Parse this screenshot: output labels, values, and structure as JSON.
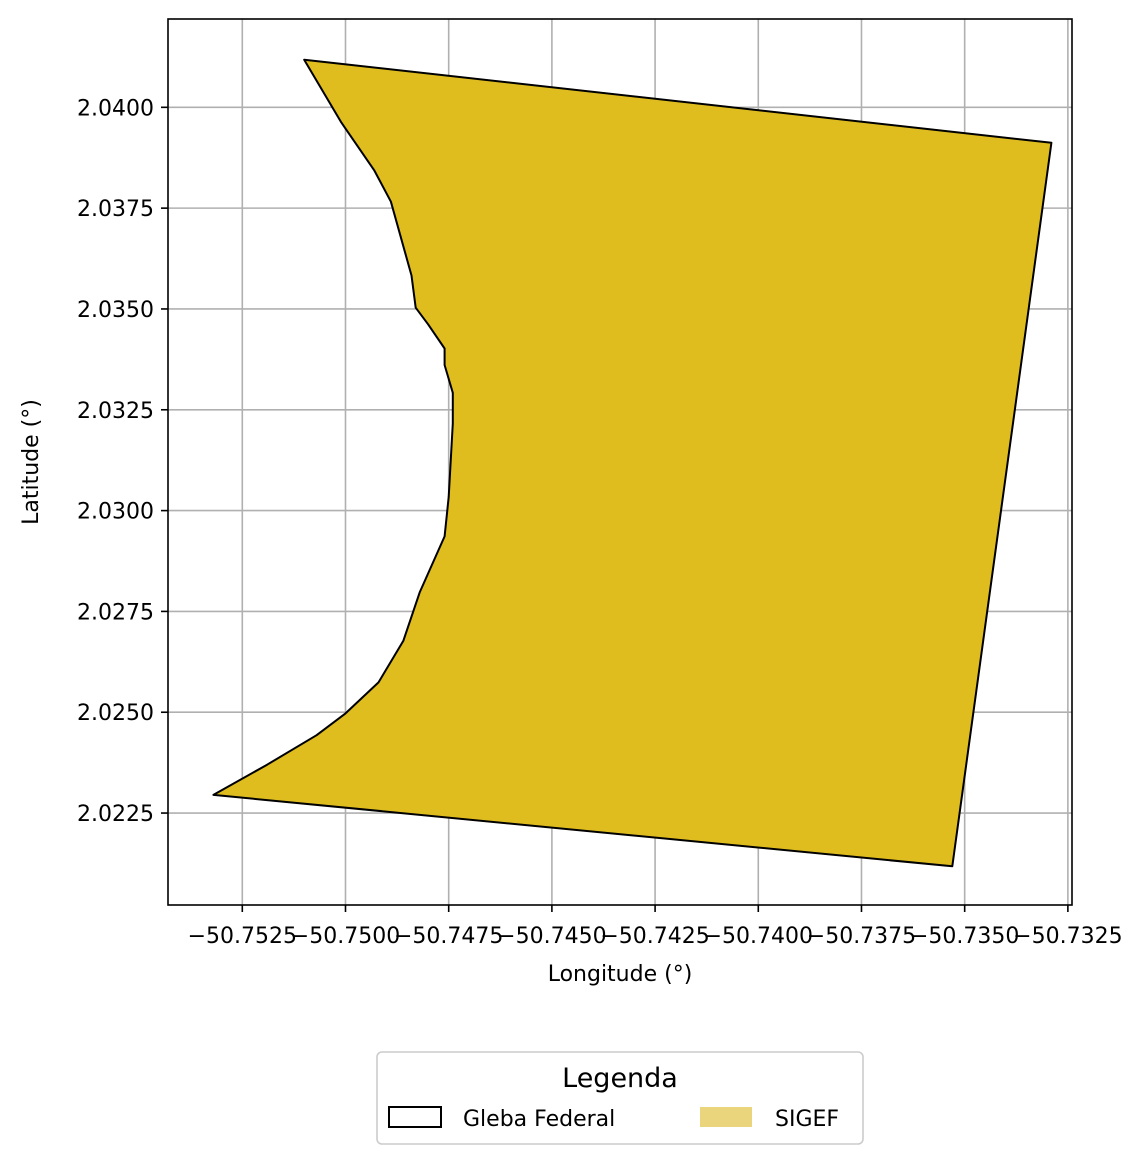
{
  "chart_data": {
    "type": "map",
    "xlabel": "Longitude (°)",
    "ylabel": "Latitude (°)",
    "xlim": [
      -50.7543,
      -50.7324
    ],
    "ylim": [
      2.02022,
      2.04219
    ],
    "grid": true,
    "x_ticks": [
      -50.7525,
      -50.75,
      -50.7475,
      -50.745,
      -50.7425,
      -50.74,
      -50.7375,
      -50.735,
      -50.7325
    ],
    "x_tick_labels": [
      "−50.7525",
      "−50.7500",
      "−50.7475",
      "−50.7450",
      "−50.7425",
      "−50.7400",
      "−50.7375",
      "−50.7350",
      "−50.7325"
    ],
    "y_ticks": [
      2.0225,
      2.025,
      2.0275,
      2.03,
      2.0325,
      2.035,
      2.0375,
      2.04
    ],
    "y_tick_labels": [
      "2.0225",
      "2.0250",
      "2.0275",
      "2.0300",
      "2.0325",
      "2.0350",
      "2.0375",
      "2.0400"
    ],
    "layers": [
      {
        "name": "SIGEF",
        "fill": "#dfbd1f",
        "stroke": "#000000",
        "polygon": [
          [
            -50.751,
            2.04118
          ],
          [
            -50.7329,
            2.03912
          ],
          [
            -50.7353,
            2.02118
          ],
          [
            -50.7532,
            2.02295
          ],
          [
            -50.7519,
            2.0237
          ],
          [
            -50.7507,
            2.02443
          ],
          [
            -50.75,
            2.02497
          ],
          [
            -50.7492,
            2.02574
          ],
          [
            -50.7486,
            2.02677
          ],
          [
            -50.7482,
            2.02798
          ],
          [
            -50.7476,
            2.02936
          ],
          [
            -50.7475,
            2.03034
          ],
          [
            -50.7474,
            2.03216
          ],
          [
            -50.7474,
            2.03292
          ],
          [
            -50.7476,
            2.03361
          ],
          [
            -50.7476,
            2.03402
          ],
          [
            -50.748,
            2.03462
          ],
          [
            -50.7483,
            2.03503
          ],
          [
            -50.7484,
            2.03583
          ],
          [
            -50.7489,
            2.03766
          ],
          [
            -50.7493,
            2.03843
          ],
          [
            -50.7501,
            2.03962
          ]
        ]
      }
    ],
    "legend": {
      "title": "Legenda",
      "placement": "bottom-center",
      "entries": [
        {
          "label": "Gleba Federal",
          "style": "outline",
          "color": "#000000"
        },
        {
          "label": "SIGEF",
          "style": "filled",
          "color": "#ebd57c"
        }
      ]
    }
  }
}
